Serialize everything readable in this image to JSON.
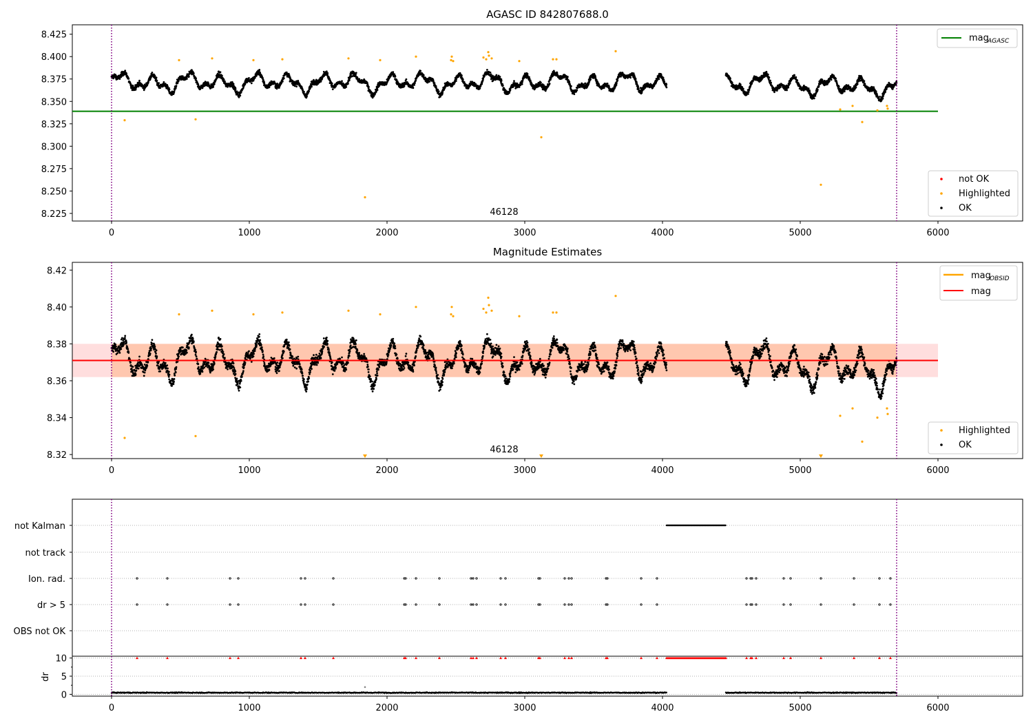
{
  "colors": {
    "ok": "#000000",
    "highlighted": "#ffa500",
    "not_ok": "#ff0000",
    "agasc_line": "#008000",
    "obsid_line": "#ffa500",
    "mag_line": "#ff0000",
    "band_fill": "#ffb6b6",
    "band_fill_obsid": "#ffb080",
    "obs_marker": "#800080",
    "grid": "#b0b0b0"
  },
  "chart_data": [
    {
      "type": "scatter",
      "title": "AGASC ID 842807688.0",
      "xlabel": "",
      "ylabel": "",
      "xlim": [
        -285,
        6615
      ],
      "ylim": [
        8.2165,
        8.4355
      ],
      "x_ticks": [
        0,
        1000,
        2000,
        3000,
        4000,
        5000,
        6000
      ],
      "x_tick_labels": [
        "0",
        "1000",
        "2000",
        "3000",
        "4000",
        "5000",
        "6000"
      ],
      "y_ticks": [
        8.225,
        8.25,
        8.275,
        8.3,
        8.325,
        8.35,
        8.375,
        8.4,
        8.425
      ],
      "y_tick_labels": [
        "8.225",
        "8.250",
        "8.275",
        "8.300",
        "8.325",
        "8.350",
        "8.375",
        "8.400",
        "8.425"
      ],
      "obs_label": "46128",
      "obs_bounds": [
        0,
        5700
      ],
      "mag_agasc": 8.339,
      "mag_agasc_range": [
        -285,
        6000
      ],
      "ok_segments": [
        [
          0,
          4030
        ],
        [
          4460,
          5700
        ]
      ],
      "ok_base": 8.371,
      "highlighted": [
        [
          95,
          8.329
        ],
        [
          490,
          8.396
        ],
        [
          610,
          8.33
        ],
        [
          730,
          8.398
        ],
        [
          1030,
          8.396
        ],
        [
          1240,
          8.397
        ],
        [
          1720,
          8.398
        ],
        [
          1840,
          8.243
        ],
        [
          1950,
          8.396
        ],
        [
          2210,
          8.4
        ],
        [
          2465,
          8.396
        ],
        [
          2470,
          8.4
        ],
        [
          2480,
          8.395
        ],
        [
          2700,
          8.399
        ],
        [
          2720,
          8.397
        ],
        [
          2735,
          8.405
        ],
        [
          2740,
          8.401
        ],
        [
          2760,
          8.398
        ],
        [
          2960,
          8.395
        ],
        [
          3120,
          8.31
        ],
        [
          3205,
          8.397
        ],
        [
          3230,
          8.397
        ],
        [
          3660,
          8.406
        ],
        [
          5150,
          8.257
        ],
        [
          5290,
          8.341
        ],
        [
          5380,
          8.345
        ],
        [
          5450,
          8.327
        ],
        [
          5560,
          8.34
        ],
        [
          5630,
          8.345
        ],
        [
          5635,
          8.342
        ]
      ],
      "legend_line": [
        {
          "label": "mag",
          "subscript": "AGASC",
          "color": "#008000"
        }
      ],
      "legend_points": [
        {
          "label": "not OK",
          "color": "#ff0000"
        },
        {
          "label": "Highlighted",
          "color": "#ffa500"
        },
        {
          "label": "OK",
          "color": "#000000"
        }
      ]
    },
    {
      "type": "scatter",
      "title": "Magnitude Estimates",
      "xlabel": "",
      "ylabel": "",
      "xlim": [
        -285,
        6615
      ],
      "ylim": [
        8.3178,
        8.4242
      ],
      "x_ticks": [
        0,
        1000,
        2000,
        3000,
        4000,
        5000,
        6000
      ],
      "x_tick_labels": [
        "0",
        "1000",
        "2000",
        "3000",
        "4000",
        "5000",
        "6000"
      ],
      "y_ticks": [
        8.32,
        8.34,
        8.36,
        8.38,
        8.4,
        8.42
      ],
      "y_tick_labels": [
        "8.32",
        "8.34",
        "8.36",
        "8.38",
        "8.40",
        "8.42"
      ],
      "obs_label": "46128",
      "obs_bounds": [
        0,
        5700
      ],
      "mag": 8.371,
      "mag_obsid": 8.371,
      "band": [
        8.362,
        8.38
      ],
      "band_range": [
        -285,
        6000
      ],
      "band_obsid_range": [
        0,
        5700
      ],
      "ok_segments": [
        [
          0,
          4030
        ],
        [
          4460,
          5700
        ]
      ],
      "ok_base": 8.371,
      "highlighted": [
        [
          95,
          8.329
        ],
        [
          490,
          8.396
        ],
        [
          610,
          8.33
        ],
        [
          730,
          8.398
        ],
        [
          1030,
          8.396
        ],
        [
          1240,
          8.397
        ],
        [
          1720,
          8.398
        ],
        [
          1950,
          8.396
        ],
        [
          2210,
          8.4
        ],
        [
          2465,
          8.396
        ],
        [
          2470,
          8.4
        ],
        [
          2480,
          8.395
        ],
        [
          2700,
          8.399
        ],
        [
          2720,
          8.397
        ],
        [
          2735,
          8.405
        ],
        [
          2740,
          8.401
        ],
        [
          2760,
          8.398
        ],
        [
          2960,
          8.395
        ],
        [
          3205,
          8.397
        ],
        [
          3230,
          8.397
        ],
        [
          3660,
          8.406
        ],
        [
          5290,
          8.341
        ],
        [
          5380,
          8.345
        ],
        [
          5450,
          8.327
        ],
        [
          5560,
          8.34
        ],
        [
          5630,
          8.345
        ],
        [
          5635,
          8.342
        ]
      ],
      "off_scale_low": [
        1840,
        3120,
        5150
      ],
      "legend_line": [
        {
          "label": "mag",
          "subscript": "OBSID",
          "color": "#ffa500"
        },
        {
          "label": "mag",
          "subscript": "",
          "color": "#ff0000"
        }
      ],
      "legend_points": [
        {
          "label": "Highlighted",
          "color": "#ffa500"
        },
        {
          "label": "OK",
          "color": "#000000"
        }
      ]
    },
    {
      "type": "scatter",
      "title": "",
      "xlabel": "",
      "ylabel": "",
      "xlim": [
        -285,
        6615
      ],
      "rows": [
        "not Kalman",
        "not track",
        "Ion. rad.",
        "dr > 5",
        "OBS not OK"
      ],
      "not_kalman_range": [
        4030,
        4460
      ],
      "flag_events": [
        185,
        405,
        860,
        920,
        1375,
        1405,
        1610,
        2125,
        2135,
        2210,
        2380,
        2610,
        2625,
        2650,
        2825,
        2860,
        3100,
        3110,
        3290,
        3320,
        3340,
        3590,
        3600,
        3845,
        3960,
        4610,
        4640,
        4650,
        4680,
        4880,
        4930,
        5150,
        5390,
        5575,
        5655
      ],
      "obs_bounds": [
        0,
        5700
      ]
    },
    {
      "type": "scatter",
      "title": "",
      "xlabel": "",
      "ylabel": "dr",
      "xlim": [
        -285,
        6615
      ],
      "ylim": [
        -0.5,
        10.5
      ],
      "y_ticks": [
        0,
        5,
        10
      ],
      "y_tick_labels": [
        "0",
        "5",
        "10"
      ],
      "x_ticks": [
        0,
        1000,
        2000,
        3000,
        4000,
        5000,
        6000
      ],
      "x_tick_labels": [
        "0",
        "1000",
        "2000",
        "3000",
        "4000",
        "5000",
        "6000"
      ],
      "ok_segments": [
        [
          0,
          4030
        ],
        [
          4460,
          5700
        ]
      ],
      "capped_value": 10,
      "outlier": [
        1840,
        2.0
      ],
      "obs_bounds": [
        0,
        5700
      ]
    }
  ]
}
